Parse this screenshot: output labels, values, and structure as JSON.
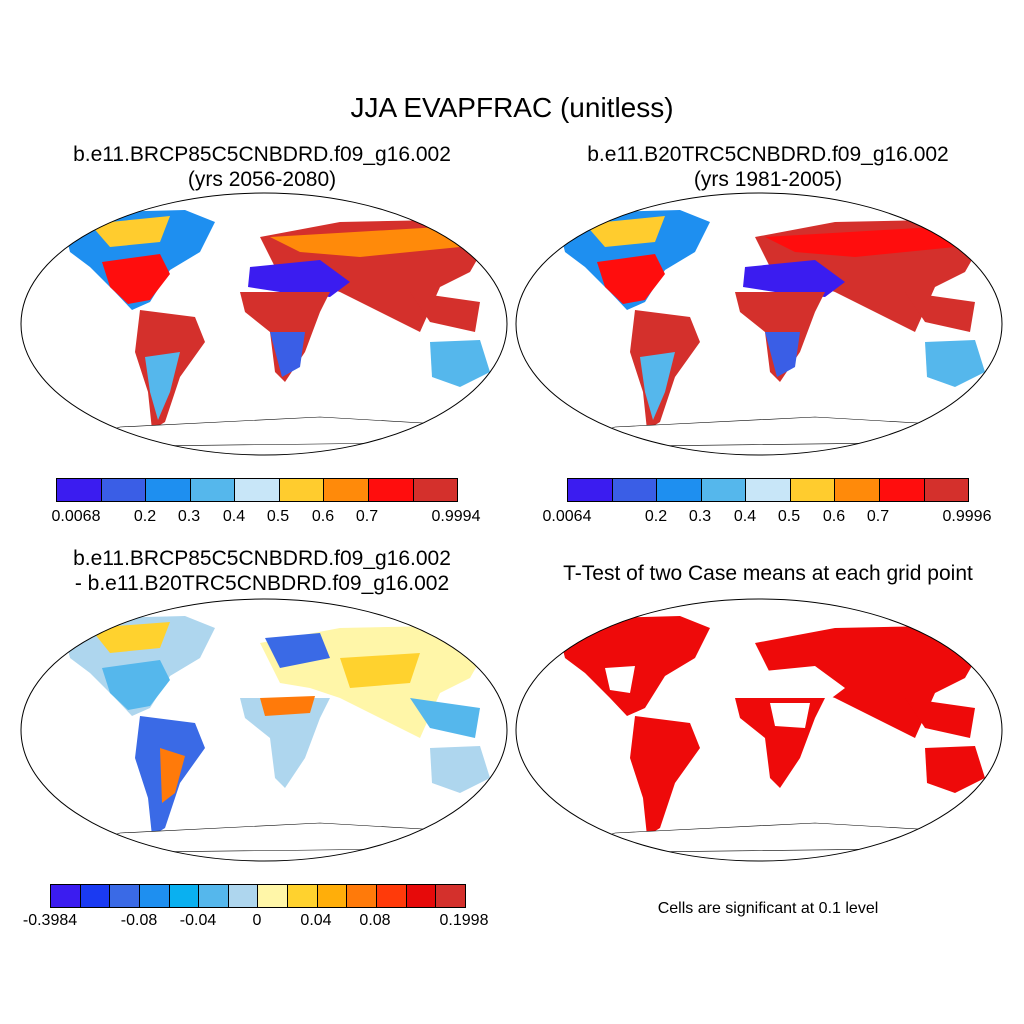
{
  "main_title": "JJA EVAPFRAC (unitless)",
  "panels": {
    "top_left": {
      "title_line1": "b.e11.BRCP85C5CNBDRD.f09_g16.002",
      "title_line2": "(yrs 2056-2080)"
    },
    "top_right": {
      "title_line1": "b.e11.B20TRC5CNBDRD.f09_g16.002",
      "title_line2": "(yrs 1981-2005)"
    },
    "bottom_left": {
      "title_line1": "b.e11.BRCP85C5CNBDRD.f09_g16.002",
      "title_line2": "- b.e11.B20TRC5CNBDRD.f09_g16.002"
    },
    "bottom_right": {
      "title": "T-Test of two Case means at each grid point",
      "note": "Cells are significant at 0.1 level"
    }
  },
  "colorbars": {
    "top_left": {
      "colors": [
        "#3b1cf0",
        "#3a5ee6",
        "#1e8ff0",
        "#55b7ec",
        "#c8e6f8",
        "#ffcc2e",
        "#ff8a0a",
        "#ff0d0d",
        "#d4302c"
      ],
      "labels": [
        "0.0068",
        "0.2",
        "0.3",
        "0.4",
        "0.5",
        "0.6",
        "0.7",
        "0.9994"
      ]
    },
    "top_right": {
      "colors": [
        "#3b1cf0",
        "#3a5ee6",
        "#1e8ff0",
        "#55b7ec",
        "#c8e6f8",
        "#ffcc2e",
        "#ff8a0a",
        "#ff0d0d",
        "#d4302c"
      ],
      "labels": [
        "0.0064",
        "0.2",
        "0.3",
        "0.4",
        "0.5",
        "0.6",
        "0.7",
        "0.9996"
      ]
    },
    "bottom_left": {
      "colors": [
        "#3b1cf0",
        "#1a3af2",
        "#3a6ae6",
        "#1e8ff0",
        "#0ab0f0",
        "#55b7ec",
        "#aed6ee",
        "#fff6a8",
        "#ffd22e",
        "#ffae0a",
        "#ff7a0a",
        "#ff3a0a",
        "#e60a0a",
        "#d4302c"
      ],
      "labels": [
        "-0.3984",
        "-0.08",
        "-0.04",
        "0",
        "0.04",
        "0.08",
        "0.1998"
      ]
    }
  }
}
